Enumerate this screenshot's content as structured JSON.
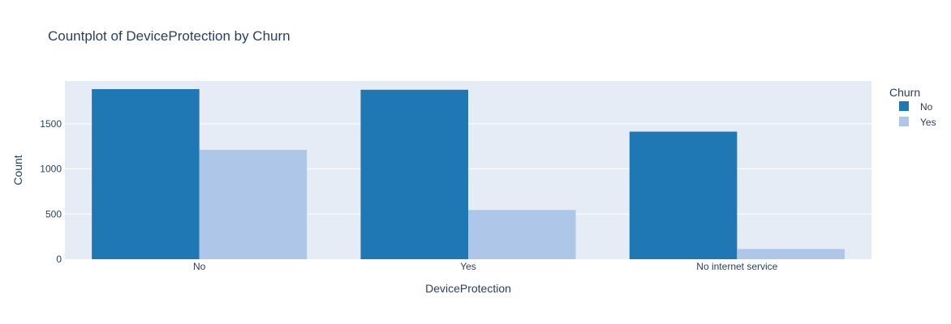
{
  "chart_data": {
    "type": "bar",
    "title": "Countplot of DeviceProtection by Churn",
    "xlabel": "DeviceProtection",
    "ylabel": "Count",
    "categories": [
      "No",
      "Yes",
      "No internet service"
    ],
    "series": [
      {
        "name": "No",
        "color": "#1f77b4",
        "values": [
          1884,
          1877,
          1413
        ]
      },
      {
        "name": "Yes",
        "color": "#aec7e8",
        "values": [
          1211,
          545,
          113
        ]
      }
    ],
    "ylim": [
      0,
      1974
    ],
    "yticks": [
      0,
      500,
      1000,
      1500
    ],
    "grid": true,
    "legend": {
      "title": "Churn",
      "placement": "top-right"
    }
  }
}
